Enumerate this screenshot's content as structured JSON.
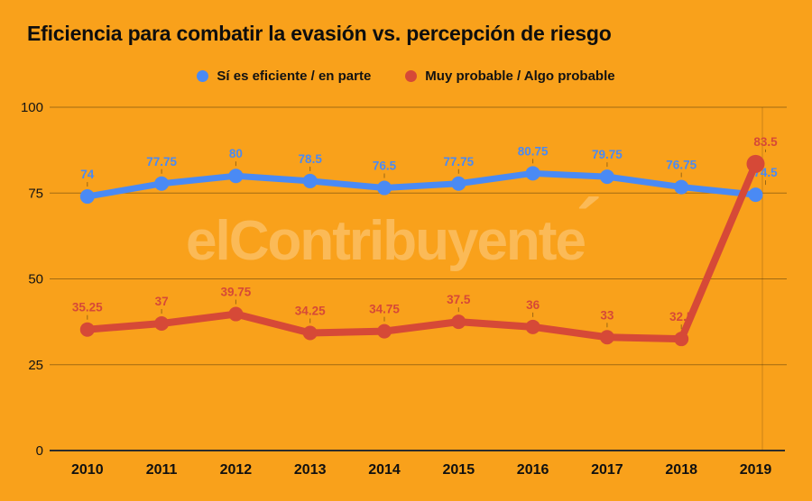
{
  "title": "Eficiencia para combatir la evasión vs. percepción de riesgo",
  "watermark": {
    "text": "elContribuyente",
    "accent": "´"
  },
  "colors": {
    "background": "#F9A11B",
    "blue_series": "#4A8AF4",
    "red_series": "#D64937",
    "gridline": "rgba(40,30,10,0.42)",
    "axis_line": "#2c2c2c",
    "text": "#141414"
  },
  "legend": [
    {
      "label": "Sí es eficiente / en parte",
      "color": "#4A8AF4"
    },
    {
      "label": "Muy probable / Algo probable",
      "color": "#D64937"
    }
  ],
  "chart_data": {
    "type": "line",
    "title": "Eficiencia para combatir la evasión vs. percepción de riesgo",
    "x": [
      "2010",
      "2011",
      "2012",
      "2013",
      "2014",
      "2015",
      "2016",
      "2017",
      "2018",
      "2019"
    ],
    "series": [
      {
        "name": "Sí es eficiente / en parte",
        "color": "#4A8AF4",
        "values": [
          74,
          77.75,
          80,
          78.5,
          76.5,
          77.75,
          80.75,
          79.75,
          76.75,
          74.5
        ]
      },
      {
        "name": "Muy probable / Algo probable",
        "color": "#D64937",
        "values": [
          35.25,
          37,
          39.75,
          34.25,
          34.75,
          37.5,
          36,
          33,
          32.5,
          83.5
        ]
      }
    ],
    "ylim": [
      0,
      100
    ],
    "yticks": [
      0,
      25,
      50,
      75,
      100
    ],
    "xlabel": "",
    "ylabel": "",
    "grid": true,
    "legend_position": "top",
    "data_labels": true
  }
}
